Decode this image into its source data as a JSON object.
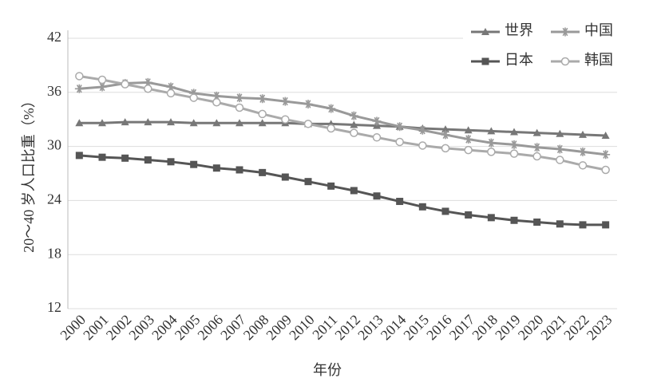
{
  "chart_data": {
    "type": "line",
    "categories": [
      "2000",
      "2001",
      "2002",
      "2003",
      "2004",
      "2005",
      "2006",
      "2007",
      "2008",
      "2009",
      "2010",
      "2011",
      "2012",
      "2013",
      "2014",
      "2015",
      "2016",
      "2017",
      "2018",
      "2019",
      "2020",
      "2021",
      "2022",
      "2023"
    ],
    "series": [
      {
        "name": "世界",
        "color": "#777777",
        "marker": "triangle",
        "values": [
          32.6,
          32.6,
          32.7,
          32.7,
          32.7,
          32.6,
          32.6,
          32.6,
          32.6,
          32.6,
          32.5,
          32.5,
          32.4,
          32.3,
          32.2,
          32.0,
          31.9,
          31.8,
          31.7,
          31.6,
          31.5,
          31.4,
          31.3,
          31.2
        ]
      },
      {
        "name": "中国",
        "color": "#999999",
        "marker": "star",
        "values": [
          36.4,
          36.6,
          37.0,
          37.1,
          36.6,
          35.9,
          35.6,
          35.4,
          35.3,
          35.0,
          34.7,
          34.2,
          33.4,
          32.8,
          32.2,
          31.8,
          31.3,
          30.8,
          30.4,
          30.2,
          29.9,
          29.7,
          29.4,
          29.1
        ]
      },
      {
        "name": "日本",
        "color": "#555555",
        "marker": "square",
        "values": [
          29.0,
          28.8,
          28.7,
          28.5,
          28.3,
          28.0,
          27.6,
          27.4,
          27.1,
          26.6,
          26.1,
          25.6,
          25.1,
          24.5,
          23.9,
          23.3,
          22.8,
          22.4,
          22.1,
          21.8,
          21.6,
          21.4,
          21.3,
          21.3
        ]
      },
      {
        "name": "韩国",
        "color": "#aaaaaa",
        "marker": "circle",
        "values": [
          37.8,
          37.4,
          36.9,
          36.4,
          35.9,
          35.4,
          34.9,
          34.3,
          33.6,
          33.0,
          32.5,
          32.0,
          31.5,
          31.0,
          30.5,
          30.1,
          29.8,
          29.6,
          29.4,
          29.2,
          28.9,
          28.5,
          27.9,
          27.4
        ]
      }
    ],
    "x_label": "年份",
    "y_label": "20～40 岁人口比重（%）",
    "ylim": [
      12,
      42
    ],
    "yticks": [
      12,
      18,
      24,
      30,
      36,
      42
    ],
    "grid": true,
    "legend": "top-right"
  }
}
